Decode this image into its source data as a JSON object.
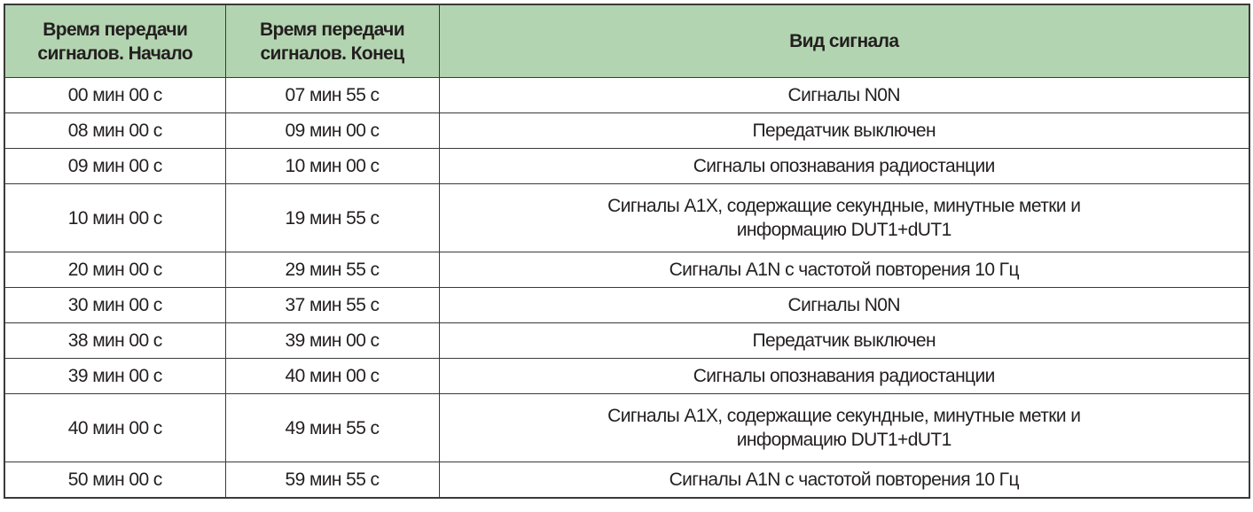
{
  "header": {
    "start": "Время передачи сигналов. Начало",
    "end": "Время передачи сигналов. Конец",
    "type": "Вид сигнала",
    "background_color": "#b3d4b0"
  },
  "rows": [
    {
      "start": "00 мин 00 с",
      "end": "07 мин 55 с",
      "type": "Сигналы N0N"
    },
    {
      "start": "08 мин 00 с",
      "end": "09 мин 00 с",
      "type": "Передатчик выключен"
    },
    {
      "start": "09 мин 00 с",
      "end": "10 мин 00 с",
      "type": "Сигналы опознавания радиостанции"
    },
    {
      "start": "10 мин 00 с",
      "end": "19 мин 55 с",
      "type": "Сигналы A1X, содержащие секундные, минутные метки и информацию DUT1+dUT1"
    },
    {
      "start": "20 мин 00 с",
      "end": "29 мин 55 с",
      "type": "Сигналы A1N с частотой повторения 10 Гц"
    },
    {
      "start": "30 мин 00 с",
      "end": "37 мин 55 с",
      "type": "Сигналы N0N"
    },
    {
      "start": "38 мин 00 с",
      "end": "39 мин 00 с",
      "type": "Передатчик выключен"
    },
    {
      "start": "39 мин 00 с",
      "end": "40 мин 00 с",
      "type": "Сигналы опознавания радиостанции"
    },
    {
      "start": "40 мин 00 с",
      "end": "49 мин 55 с",
      "type": "Сигналы A1X, содержащие секундные, минутные метки и информацию DUT1+dUT1"
    },
    {
      "start": "50 мин 00 с",
      "end": "59 мин 55 с",
      "type": "Сигналы A1N с частотой повторения 10 Гц"
    }
  ]
}
